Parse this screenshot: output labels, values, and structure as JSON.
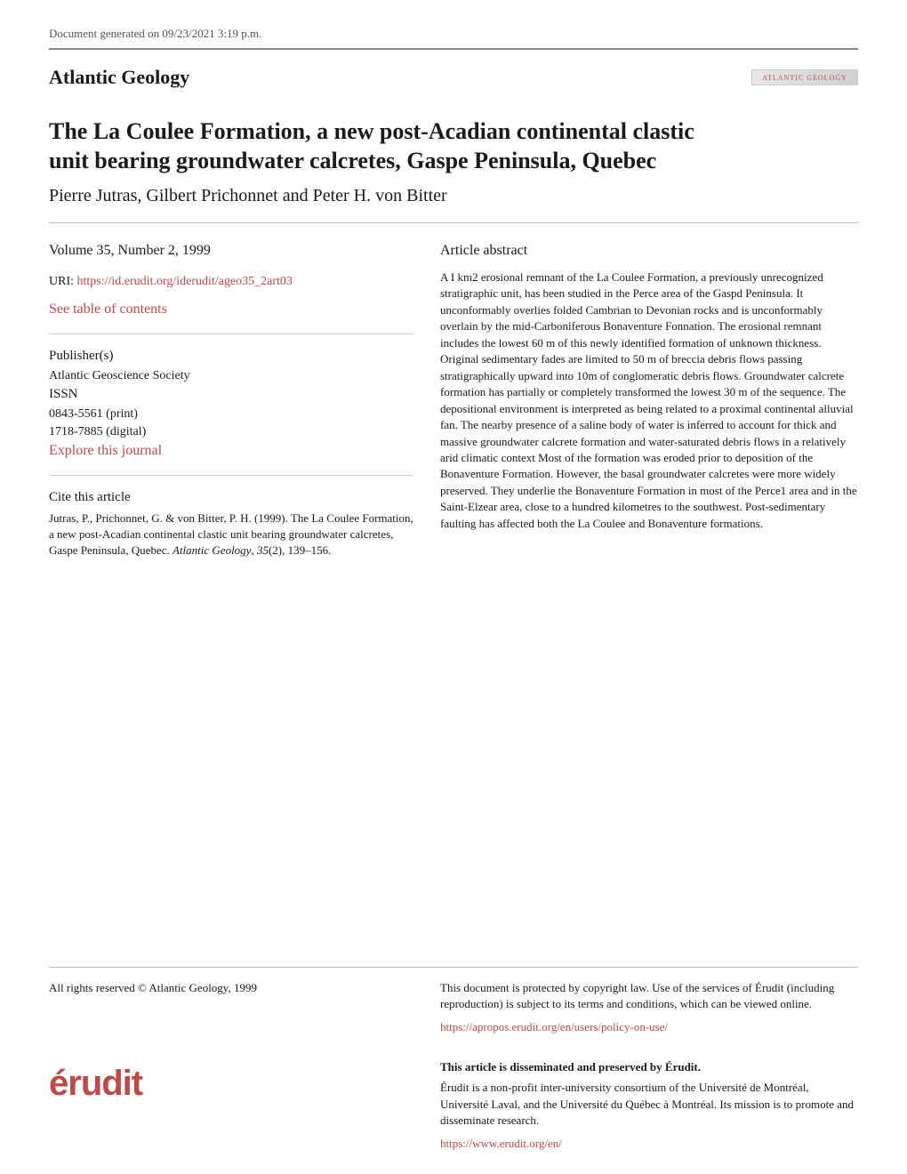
{
  "generated_text": "Document generated on 09/23/2021 3:19 p.m.",
  "journal_name": "Atlantic Geology",
  "journal_logo_text": "ATLANTIC GEOLOGY",
  "article_title": "The La Coulee Formation, a new post-Acadian continental clastic unit bearing groundwater calcretes, Gaspe Peninsula, Quebec",
  "authors": "Pierre Jutras, Gilbert Prichonnet and Peter H. von Bitter",
  "issue": "Volume 35, Number 2, 1999",
  "uri_label": "URI: ",
  "uri_link": "https://id.erudit.org/iderudit/ageo35_2art03",
  "toc_link": "See table of contents",
  "publisher_label": "Publisher(s)",
  "publisher_value": "Atlantic Geoscience Society",
  "issn_label": "ISSN",
  "issn_print": "0843-5561 (print)",
  "issn_digital": "1718-7885 (digital)",
  "explore_link": "Explore this journal",
  "cite_label": "Cite this article",
  "cite_text_1": "Jutras, P., Prichonnet, G. & von Bitter, P. H. (1999). The La Coulee Formation, a new post-Acadian continental clastic unit bearing groundwater calcretes, Gaspe Peninsula, Quebec. ",
  "cite_journal": "Atlantic Geology",
  "cite_text_2": ", ",
  "cite_vol": "35",
  "cite_text_3": "(2), 139–156.",
  "abstract_label": "Article abstract",
  "abstract_text": "A I km2 erosional remnant of the La Coulee Formation, a previously unrecognized stratigraphic unit, has been studied in the Perce area of the Gaspd Peninsula. It unconformably overlies folded Cambrian to Devonian rocks and is unconformably overlain by the mid-Carboniferous Bonaventure Fonnation. The erosional remnant includes the lowest 60 m of this newly identified formation of unknown thickness. Original sedimentary fades are limited to 50 m of breccia debris flows passing stratigraphically upward into 10m of conglomeratic debris flows. Groundwater calcrete formation has partially or completely transformed the lowest 30 m of the sequence. The depositional environment is interpreted as being related to a proximal continental alluvial fan. The nearby presence of a saline body of water is inferred to account for thick and massive groundwater calcrete formation and water-saturated debris flows in a relatively arid climatic context Most of the formation was eroded prior to deposition of the Bonaventure Formation. However, the basal groundwater calcretes were more widely preserved. They underlie the Bonaventure Formation in most of the Perce1 area and in the Saint-Elzear area, close to a hundred kilometres to the southwest. Post-sedimentary faulting has affected both the La Coulee and Bonaventure formations.",
  "copyright": "All rights reserved © Atlantic Geology, 1999",
  "protected_text": "This document is protected by copyright law. Use of the services of Érudit (including reproduction) is subject to its terms and conditions, which can be viewed online.",
  "policy_link": "https://apropos.erudit.org/en/users/policy-on-use/",
  "erudit_logo": "érudit",
  "disseminated_heading": "This article is disseminated and preserved by Érudit.",
  "disseminated_text": "Érudit is a non-profit inter-university consortium of the Université de Montréal, Université Laval, and the Université du Québec à Montréal. Its mission is to promote and disseminate research.",
  "erudit_link": "https://www.erudit.org/en/",
  "colors": {
    "link": "#c14848",
    "text": "#1a1a1a",
    "muted": "#555",
    "rule": "#bbb"
  }
}
